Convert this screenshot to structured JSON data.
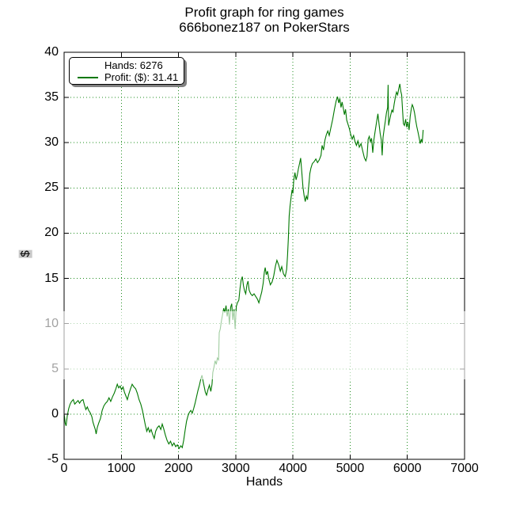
{
  "title": {
    "line1": "Profit graph for ring games",
    "line2": "666bonez187 on PokerStars"
  },
  "legend": {
    "entries": [
      {
        "label": "Hands: 6276",
        "has_line_sample": false
      },
      {
        "label": "Profit: ($): 31.41",
        "has_line_sample": true
      }
    ]
  },
  "axes": {
    "xlabel": "Hands",
    "ylabel": "$",
    "x_ticks": [
      0,
      1000,
      2000,
      3000,
      4000,
      5000,
      6000,
      7000
    ],
    "y_ticks": [
      -5,
      0,
      5,
      10,
      15,
      20,
      25,
      30,
      35,
      40
    ]
  },
  "colors": {
    "line": "#007800",
    "grid": "#1e8c1e",
    "axis": "#000000",
    "ylabel_highlight": "#c8c8c8",
    "legend_shadow": "#808080"
  },
  "chart_data": {
    "type": "line",
    "title": "Profit graph for ring games — 666bonez187 on PokerStars",
    "xlabel": "Hands",
    "ylabel": "$",
    "xlim": [
      0,
      7000
    ],
    "ylim": [
      -5,
      40
    ],
    "grid": true,
    "legend_position": "upper left",
    "legend": [
      "Hands: 6276",
      "Profit: ($): 31.41"
    ],
    "final_hands": 6276,
    "final_profit": 31.41,
    "series": [
      {
        "name": "Profit ($) vs Hands",
        "points": [
          [
            0,
            0
          ],
          [
            10,
            -0.4
          ],
          [
            20,
            -1.0
          ],
          [
            35,
            -1.3
          ],
          [
            55,
            -0.2
          ],
          [
            80,
            0.6
          ],
          [
            105,
            1.1
          ],
          [
            130,
            1.4
          ],
          [
            160,
            1.6
          ],
          [
            185,
            1.1
          ],
          [
            215,
            1.3
          ],
          [
            245,
            1.5
          ],
          [
            270,
            1.2
          ],
          [
            300,
            1.5
          ],
          [
            330,
            1.6
          ],
          [
            355,
            1.0
          ],
          [
            380,
            0.5
          ],
          [
            405,
            0.8
          ],
          [
            430,
            0.4
          ],
          [
            460,
            0.1
          ],
          [
            485,
            -0.3
          ],
          [
            505,
            -0.9
          ],
          [
            525,
            -1.3
          ],
          [
            545,
            -1.7
          ],
          [
            560,
            -2.2
          ],
          [
            580,
            -1.5
          ],
          [
            605,
            -1.0
          ],
          [
            635,
            -0.5
          ],
          [
            665,
            0.4
          ],
          [
            695,
            0.9
          ],
          [
            725,
            1.2
          ],
          [
            755,
            1.4
          ],
          [
            785,
            1.8
          ],
          [
            815,
            1.4
          ],
          [
            845,
            1.9
          ],
          [
            875,
            2.3
          ],
          [
            905,
            2.8
          ],
          [
            930,
            3.3
          ],
          [
            955,
            2.9
          ],
          [
            980,
            3.1
          ],
          [
            1005,
            2.7
          ],
          [
            1030,
            3.0
          ],
          [
            1055,
            2.4
          ],
          [
            1080,
            2.0
          ],
          [
            1105,
            1.6
          ],
          [
            1130,
            2.2
          ],
          [
            1160,
            2.8
          ],
          [
            1190,
            3.3
          ],
          [
            1220,
            3.0
          ],
          [
            1250,
            2.8
          ],
          [
            1280,
            2.3
          ],
          [
            1310,
            1.6
          ],
          [
            1340,
            1.1
          ],
          [
            1370,
            0.4
          ],
          [
            1395,
            -0.4
          ],
          [
            1420,
            -1.2
          ],
          [
            1445,
            -1.9
          ],
          [
            1470,
            -1.5
          ],
          [
            1495,
            -2.0
          ],
          [
            1520,
            -1.7
          ],
          [
            1545,
            -2.2
          ],
          [
            1575,
            -2.7
          ],
          [
            1600,
            -1.9
          ],
          [
            1630,
            -1.5
          ],
          [
            1660,
            -1.3
          ],
          [
            1690,
            -1.7
          ],
          [
            1715,
            -1.1
          ],
          [
            1740,
            -1.6
          ],
          [
            1770,
            -2.3
          ],
          [
            1800,
            -2.9
          ],
          [
            1830,
            -3.3
          ],
          [
            1860,
            -3.0
          ],
          [
            1890,
            -3.5
          ],
          [
            1920,
            -3.2
          ],
          [
            1950,
            -3.6
          ],
          [
            1980,
            -3.4
          ],
          [
            2010,
            -3.8
          ],
          [
            2040,
            -3.5
          ],
          [
            2065,
            -3.7
          ],
          [
            2090,
            -2.9
          ],
          [
            2115,
            -1.8
          ],
          [
            2140,
            -0.8
          ],
          [
            2165,
            -0.2
          ],
          [
            2190,
            0.2
          ],
          [
            2215,
            0.4
          ],
          [
            2240,
            0.1
          ],
          [
            2265,
            0.6
          ],
          [
            2290,
            1.2
          ],
          [
            2315,
            1.9
          ],
          [
            2340,
            2.6
          ],
          [
            2365,
            3.2
          ],
          [
            2390,
            3.9
          ],
          [
            2410,
            4.3
          ],
          [
            2430,
            3.6
          ],
          [
            2450,
            3.0
          ],
          [
            2470,
            2.4
          ],
          [
            2490,
            2.1
          ],
          [
            2515,
            2.7
          ],
          [
            2540,
            3.2
          ],
          [
            2565,
            2.5
          ],
          [
            2585,
            3.3
          ],
          [
            2600,
            4.6
          ],
          [
            2620,
            5.2
          ],
          [
            2640,
            5.9
          ],
          [
            2660,
            5.5
          ],
          [
            2680,
            6.2
          ],
          [
            2700,
            6.0
          ],
          [
            2712,
            9.0
          ],
          [
            2730,
            9.4
          ],
          [
            2750,
            10.3
          ],
          [
            2770,
            11.0
          ],
          [
            2790,
            11.7
          ],
          [
            2810,
            11.2
          ],
          [
            2830,
            12.0
          ],
          [
            2850,
            10.8
          ],
          [
            2870,
            11.6
          ],
          [
            2890,
            9.9
          ],
          [
            2910,
            11.8
          ],
          [
            2930,
            12.2
          ],
          [
            2950,
            10.4
          ],
          [
            2970,
            11.6
          ],
          [
            2990,
            9.4
          ],
          [
            3010,
            11.9
          ],
          [
            3030,
            12.3
          ],
          [
            3055,
            12.6
          ],
          [
            3075,
            13.9
          ],
          [
            3095,
            14.8
          ],
          [
            3115,
            15.2
          ],
          [
            3135,
            14.2
          ],
          [
            3155,
            13.6
          ],
          [
            3175,
            13.3
          ],
          [
            3195,
            14.3
          ],
          [
            3215,
            14.7
          ],
          [
            3235,
            13.7
          ],
          [
            3260,
            13.3
          ],
          [
            3290,
            13.1
          ],
          [
            3320,
            13.3
          ],
          [
            3350,
            13.0
          ],
          [
            3380,
            12.7
          ],
          [
            3405,
            12.3
          ],
          [
            3430,
            12.9
          ],
          [
            3455,
            13.5
          ],
          [
            3480,
            14.5
          ],
          [
            3500,
            15.7
          ],
          [
            3515,
            16.2
          ],
          [
            3535,
            15.4
          ],
          [
            3555,
            15.8
          ],
          [
            3580,
            14.9
          ],
          [
            3605,
            14.3
          ],
          [
            3635,
            14.6
          ],
          [
            3665,
            15.3
          ],
          [
            3695,
            16.4
          ],
          [
            3720,
            17.0
          ],
          [
            3750,
            16.5
          ],
          [
            3780,
            15.8
          ],
          [
            3805,
            16.3
          ],
          [
            3835,
            15.5
          ],
          [
            3865,
            15.2
          ],
          [
            3890,
            16.0
          ],
          [
            3905,
            17.5
          ],
          [
            3920,
            19.5
          ],
          [
            3935,
            21.9
          ],
          [
            3950,
            23.0
          ],
          [
            3970,
            24.1
          ],
          [
            3985,
            24.8
          ],
          [
            4000,
            24.4
          ],
          [
            4015,
            25.9
          ],
          [
            4035,
            26.7
          ],
          [
            4055,
            25.9
          ],
          [
            4075,
            26.4
          ],
          [
            4095,
            27.1
          ],
          [
            4115,
            27.7
          ],
          [
            4135,
            28.3
          ],
          [
            4155,
            26.8
          ],
          [
            4175,
            25.1
          ],
          [
            4195,
            24.2
          ],
          [
            4215,
            23.5
          ],
          [
            4235,
            24.1
          ],
          [
            4255,
            23.7
          ],
          [
            4275,
            25.1
          ],
          [
            4295,
            26.6
          ],
          [
            4315,
            27.2
          ],
          [
            4340,
            27.7
          ],
          [
            4370,
            27.9
          ],
          [
            4400,
            28.2
          ],
          [
            4430,
            27.8
          ],
          [
            4460,
            28.1
          ],
          [
            4490,
            28.6
          ],
          [
            4510,
            29.7
          ],
          [
            4535,
            29.2
          ],
          [
            4560,
            30.3
          ],
          [
            4585,
            30.9
          ],
          [
            4610,
            31.3
          ],
          [
            4635,
            30.8
          ],
          [
            4665,
            31.7
          ],
          [
            4695,
            32.6
          ],
          [
            4725,
            33.7
          ],
          [
            4755,
            34.6
          ],
          [
            4780,
            35.1
          ],
          [
            4800,
            34.4
          ],
          [
            4820,
            34.9
          ],
          [
            4840,
            33.9
          ],
          [
            4860,
            34.5
          ],
          [
            4880,
            33.8
          ],
          [
            4900,
            33.1
          ],
          [
            4920,
            33.7
          ],
          [
            4940,
            32.5
          ],
          [
            4960,
            32.1
          ],
          [
            4985,
            31.6
          ],
          [
            5010,
            30.9
          ],
          [
            5035,
            30.4
          ],
          [
            5060,
            30.8
          ],
          [
            5085,
            30.1
          ],
          [
            5110,
            29.7
          ],
          [
            5135,
            30.2
          ],
          [
            5160,
            29.5
          ],
          [
            5190,
            29.9
          ],
          [
            5220,
            29.1
          ],
          [
            5250,
            28.3
          ],
          [
            5275,
            28.0
          ],
          [
            5295,
            28.5
          ],
          [
            5315,
            30.4
          ],
          [
            5335,
            30.7
          ],
          [
            5355,
            30.1
          ],
          [
            5375,
            30.5
          ],
          [
            5395,
            28.9
          ],
          [
            5415,
            30.3
          ],
          [
            5435,
            31.2
          ],
          [
            5455,
            32.0
          ],
          [
            5470,
            32.6
          ],
          [
            5485,
            33.2
          ],
          [
            5505,
            32.1
          ],
          [
            5525,
            31.0
          ],
          [
            5545,
            30.3
          ],
          [
            5560,
            28.6
          ],
          [
            5575,
            30.6
          ],
          [
            5595,
            31.5
          ],
          [
            5615,
            32.4
          ],
          [
            5635,
            33.3
          ],
          [
            5655,
            33.9
          ],
          [
            5663,
            36.4
          ],
          [
            5672,
            31.9
          ],
          [
            5690,
            32.5
          ],
          [
            5710,
            33.1
          ],
          [
            5730,
            33.6
          ],
          [
            5750,
            33.4
          ],
          [
            5770,
            34.3
          ],
          [
            5790,
            35.0
          ],
          [
            5810,
            35.6
          ],
          [
            5830,
            35.3
          ],
          [
            5850,
            36.0
          ],
          [
            5868,
            36.5
          ],
          [
            5885,
            35.7
          ],
          [
            5900,
            35.3
          ],
          [
            5915,
            33.7
          ],
          [
            5930,
            32.1
          ],
          [
            5950,
            31.9
          ],
          [
            5970,
            32.6
          ],
          [
            5990,
            31.7
          ],
          [
            6010,
            32.3
          ],
          [
            6030,
            31.4
          ],
          [
            6050,
            32.9
          ],
          [
            6070,
            33.8
          ],
          [
            6085,
            34.2
          ],
          [
            6105,
            33.9
          ],
          [
            6125,
            33.3
          ],
          [
            6145,
            32.5
          ],
          [
            6165,
            31.8
          ],
          [
            6185,
            31.2
          ],
          [
            6205,
            30.6
          ],
          [
            6225,
            29.9
          ],
          [
            6245,
            30.4
          ],
          [
            6260,
            30.0
          ],
          [
            6276,
            31.41
          ]
        ]
      }
    ]
  }
}
